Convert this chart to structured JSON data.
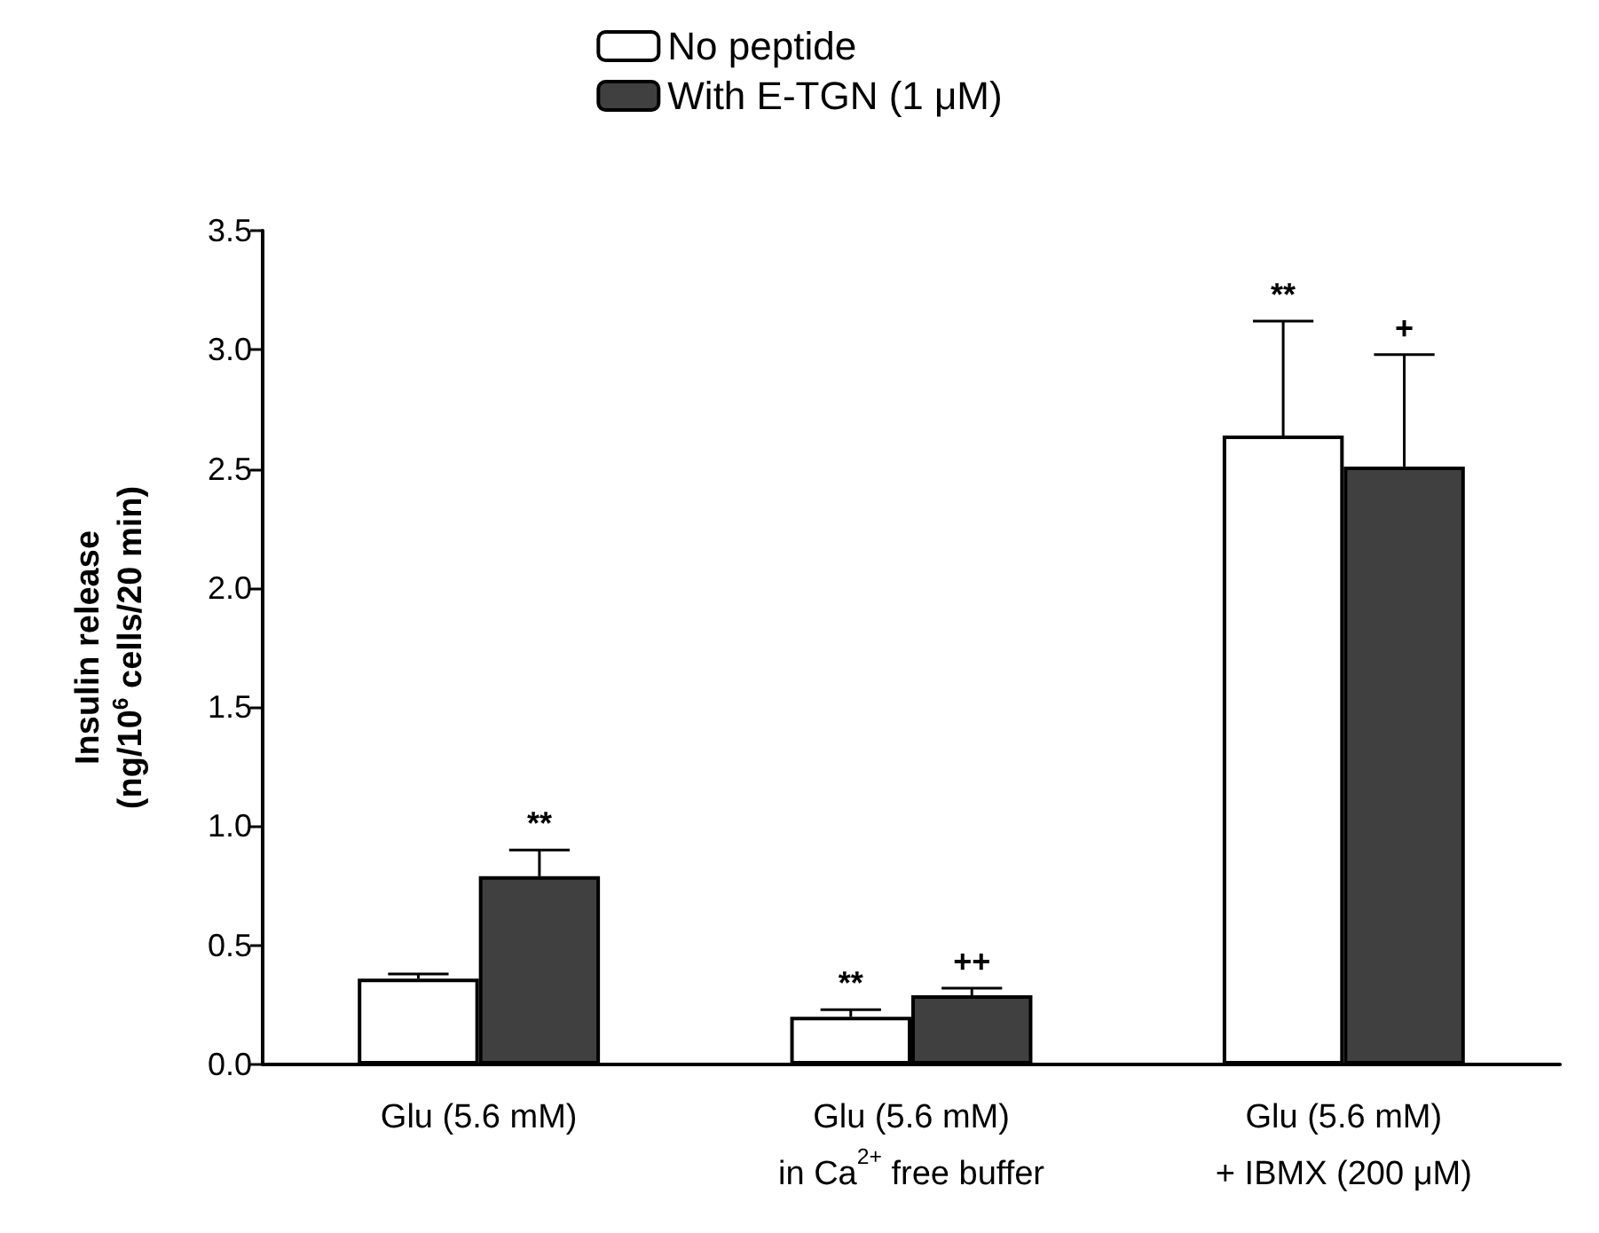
{
  "chart_data": {
    "type": "bar",
    "ylabel": "Insulin release\n(ng/10$^{6}$ cells/20 min)",
    "categories": [
      "Glu (5.6 mM)",
      "Glu (5.6 mM)\nin Ca$^{2+}$ free buffer",
      "Glu (5.6 mM)\n+ IBMX (200 μM)"
    ],
    "series": [
      {
        "name": "No peptide",
        "color": "#ffffff",
        "values": [
          0.36,
          0.2,
          2.64
        ],
        "errors": [
          [
            0.36,
            0.38
          ],
          [
            0.2,
            0.23
          ],
          [
            2.64,
            3.12
          ]
        ]
      },
      {
        "name": "With E-TGN (1 μM)",
        "color": "#404040",
        "values": [
          0.79,
          0.29,
          2.51
        ],
        "errors": [
          [
            0.79,
            0.9
          ],
          [
            0.29,
            0.32
          ],
          [
            2.51,
            2.98
          ]
        ]
      }
    ],
    "annotations": [
      {
        "text": "**",
        "x": "Glu (5.6 mM)",
        "y": 0.79
      },
      {
        "text": "**",
        "x": "Glu (5.6 mM)\nin Ca$^{2+}$ free buffer",
        "y": 0.2
      },
      {
        "text": "++",
        "x": "Glu (5.6 mM)\nin Ca$^{2+}$ free buffer",
        "y": 0.29
      },
      "**",
      "+"
    ],
    "ylim": [
      0,
      3.5
    ],
    "yticks": [
      {
        "value": 0,
        "label": "0.0"
      },
      0.5,
      {
        "value": 1,
        "label": "1.0"
      },
      1.5,
      {
        "value": 2,
        "label": "2.0"
      },
      2.5,
      {
        "value": 3,
        "label": "3.0"
      },
      3.5
    ],
    "grid": false,
    "legend": "top"
  }
}
